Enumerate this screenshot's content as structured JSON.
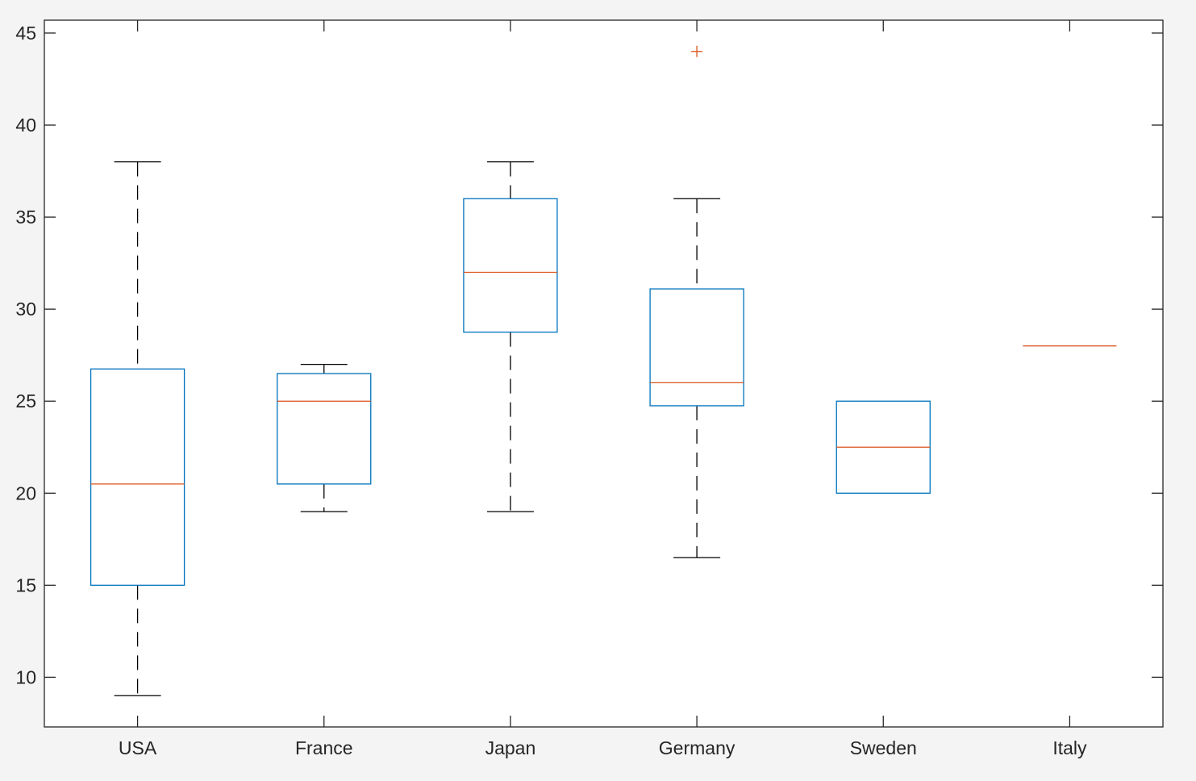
{
  "chart_data": {
    "type": "boxplot",
    "categories": [
      "USA",
      "France",
      "Japan",
      "Germany",
      "Sweden",
      "Italy"
    ],
    "boxes": [
      {
        "name": "USA",
        "whisker_low": 9,
        "q1": 15,
        "median": 20.5,
        "q3": 26.75,
        "whisker_high": 38,
        "outliers": []
      },
      {
        "name": "France",
        "whisker_low": 19,
        "q1": 20.5,
        "median": 25,
        "q3": 26.5,
        "whisker_high": 27,
        "outliers": []
      },
      {
        "name": "Japan",
        "whisker_low": 19,
        "q1": 28.75,
        "median": 32,
        "q3": 36,
        "whisker_high": 38,
        "outliers": []
      },
      {
        "name": "Germany",
        "whisker_low": 16.5,
        "q1": 24.75,
        "median": 26,
        "q3": 31.1,
        "whisker_high": 36,
        "outliers": [
          44
        ]
      },
      {
        "name": "Sweden",
        "whisker_low": 20,
        "q1": 20,
        "median": 22.5,
        "q3": 25,
        "whisker_high": 25,
        "outliers": []
      },
      {
        "name": "Italy",
        "whisker_low": 28,
        "q1": 28,
        "median": 28,
        "q3": 28,
        "whisker_high": 28,
        "outliers": []
      }
    ],
    "y_ticks": [
      10,
      15,
      20,
      25,
      30,
      35,
      40,
      45
    ],
    "ylim": [
      7.3,
      45.7
    ],
    "grid": false,
    "legend": "none",
    "colors": {
      "box": "#0072bd",
      "median": "#d95319",
      "whisker": "#000000",
      "outlier": "#d95319",
      "axis": "#262626",
      "plot_background": "#ffffff",
      "figure_background": "#f4f4f4"
    }
  }
}
